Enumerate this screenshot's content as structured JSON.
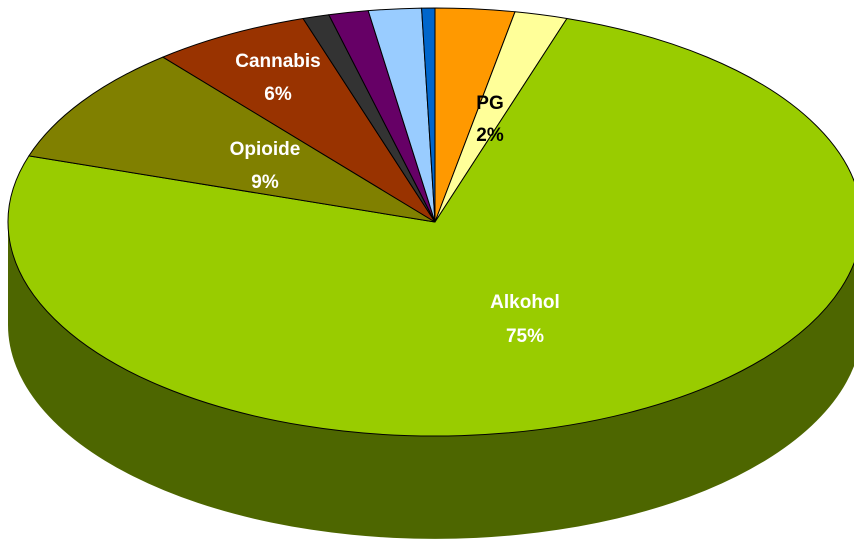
{
  "chart_data": {
    "type": "pie",
    "style": "3d-tilted",
    "title": "",
    "categories": [
      "Alkohol",
      "Opioide",
      "Cannabis",
      "",
      "",
      "",
      "",
      "",
      "PG"
    ],
    "values": [
      75,
      9,
      6,
      1,
      1.5,
      2,
      0.5,
      3,
      2
    ],
    "colors": [
      "#99CC00",
      "#808000",
      "#993300",
      "#333333",
      "#660066",
      "#99CCFF",
      "#0066CC",
      "#FF9900",
      "#FFFF99"
    ],
    "side_colors": [
      "#4D6600",
      "#404000",
      "#4D1A00",
      "#1A1A1A",
      "#330033",
      "#4D6680",
      "#003366",
      "#804D00",
      "#80804D"
    ],
    "data_labels": [
      {
        "name": "Alkohol",
        "value": "75%",
        "color": "#ffffff"
      },
      {
        "name": "Opioide",
        "value": "9%",
        "color": "#ffffff"
      },
      {
        "name": "Cannabis",
        "value": "6%",
        "color": "#ffffff"
      },
      {
        "name": "",
        "value": "",
        "color": "#000000"
      },
      {
        "name": "",
        "value": "",
        "color": "#000000"
      },
      {
        "name": "",
        "value": "",
        "color": "#000000"
      },
      {
        "name": "",
        "value": "",
        "color": "#000000"
      },
      {
        "name": "",
        "value": "",
        "color": "#000000"
      },
      {
        "name": "PG",
        "value": "2%",
        "color": "#000000"
      }
    ],
    "legend": "none"
  }
}
